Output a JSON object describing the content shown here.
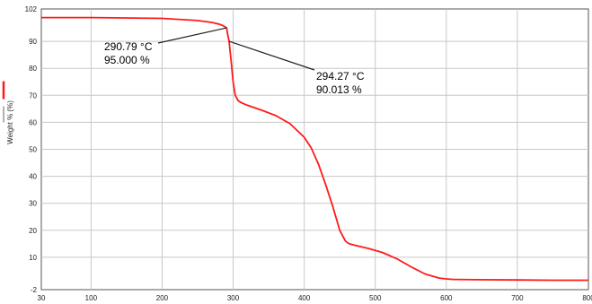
{
  "chart_data": {
    "type": "line",
    "title": "",
    "xlabel": "",
    "ylabel": "Weight % (%)",
    "xlim": [
      30,
      800
    ],
    "ylim": [
      -2,
      102
    ],
    "x_ticks": [
      30,
      100,
      200,
      300,
      400,
      500,
      600,
      700,
      800
    ],
    "y_ticks": [
      -2,
      10,
      20,
      30,
      40,
      50,
      60,
      70,
      80,
      90,
      102
    ],
    "grid": true,
    "colors": {
      "series": "#ff1a1a",
      "annotation": "#222222",
      "grid": "#c8c8c8",
      "axis": "#555555"
    },
    "series": [
      {
        "x": [
          30,
          100,
          200,
          250,
          270,
          280,
          286,
          290.79,
          292,
          294.27,
          297,
          300,
          303,
          307,
          312,
          320,
          340,
          360,
          380,
          400,
          410,
          420,
          430,
          440,
          450,
          458,
          463,
          470,
          490,
          510,
          530,
          550,
          570,
          590,
          600,
          610,
          640,
          700,
          750,
          800
        ],
        "y": [
          98.8,
          98.8,
          98.5,
          97.7,
          97.0,
          96.4,
          95.8,
          95.0,
          93.0,
          90.013,
          83,
          75,
          70,
          68,
          67.2,
          66.3,
          64.5,
          62.5,
          59.5,
          54.5,
          50.5,
          44.5,
          37,
          29,
          20,
          16,
          15,
          14.5,
          13.3,
          11.8,
          9.5,
          6.5,
          3.8,
          2.3,
          2.0,
          1.8,
          1.7,
          1.6,
          1.5,
          1.5
        ]
      }
    ],
    "annotations": [
      {
        "x": 290.79,
        "y": 95.0,
        "line1": "290.79 °C",
        "line2": "95.000 %"
      },
      {
        "x": 294.27,
        "y": 90.013,
        "line1": "294.27 °C",
        "line2": "90.013 %"
      }
    ]
  }
}
